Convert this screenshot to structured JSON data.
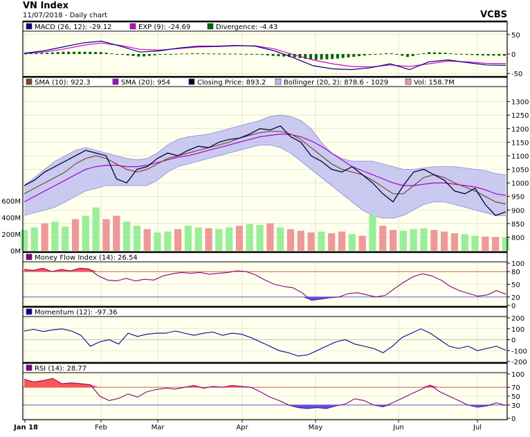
{
  "header": {
    "title": "VN Index",
    "subtitle": "11/07/2018 - Daily chart",
    "source": "VCBS"
  },
  "colors": {
    "panel_bg": "#ffffee",
    "legend_bg": "#ffffff",
    "macd": "#000080",
    "exp": "#cc00cc",
    "divergence": "#006600",
    "sma10": "#7a4a2a",
    "sma20": "#aa00cc",
    "close": "#000033",
    "bollinger_fill": "#b8b8f0",
    "bollinger_line": "#8888dd",
    "vol_up": "#99ee99",
    "vol_down": "#ee9999",
    "mfi": "#800080",
    "momentum": "#000099",
    "rsi": "#800080",
    "over_fill": "#ff5555",
    "under_fill": "#5555ee"
  },
  "chart_data": [
    {
      "type": "bar",
      "panel": "macd",
      "legend": [
        {
          "label": "MACD (26, 12): -29.12",
          "color": "#000080"
        },
        {
          "label": "EXP (9): -24.69",
          "color": "#cc00cc"
        },
        {
          "label": "Divergence: -4.43",
          "color": "#006600"
        }
      ],
      "ylim": [
        -55,
        55
      ],
      "yticks": [
        "50",
        "0",
        "-50"
      ],
      "series": [
        {
          "name": "MACD",
          "values": [
            2,
            8,
            18,
            28,
            33,
            20,
            5,
            8,
            15,
            20,
            20,
            22,
            20,
            8,
            -10,
            -30,
            -38,
            -40,
            -35,
            -25,
            -40,
            -20,
            -15,
            -22,
            -28,
            -29.12
          ]
        },
        {
          "name": "EXP",
          "values": [
            1,
            5,
            12,
            22,
            28,
            22,
            12,
            10,
            14,
            18,
            19,
            21,
            21,
            13,
            -2,
            -15,
            -25,
            -32,
            -33,
            -28,
            -32,
            -25,
            -18,
            -20,
            -24,
            -24.69
          ]
        },
        {
          "name": "Divergence",
          "values": [
            1,
            3,
            6,
            6,
            5,
            -2,
            -7,
            -2,
            1,
            2,
            1,
            1,
            -1,
            -5,
            -8,
            -15,
            -13,
            -8,
            -2,
            3,
            -8,
            5,
            3,
            -2,
            -4,
            -4.43
          ]
        }
      ]
    },
    {
      "type": "line",
      "panel": "price",
      "legend": [
        {
          "label": "SMA (10): 922.3",
          "color": "#7a4a2a"
        },
        {
          "label": "SMA (20): 954",
          "color": "#aa00cc"
        },
        {
          "label": "Closing Price: 893.2",
          "color": "#000033"
        },
        {
          "label": "Bollinger (20, 2): 878.6 - 1029",
          "color": "#b8b8f0"
        },
        {
          "label": "Vol: 158.7M",
          "color": "#ee9999"
        }
      ],
      "ylim": [
        750,
        1350
      ],
      "yticks": [
        "1300",
        "1250",
        "1200",
        "1150",
        "1100",
        "1050",
        "1000",
        "950",
        "900",
        "850",
        "800"
      ],
      "vol_ticks": [
        "600M",
        "400M",
        "200M",
        "0M"
      ],
      "close": [
        990,
        1010,
        1040,
        1060,
        1080,
        1100,
        1120,
        1110,
        1100,
        1015,
        1000,
        1050,
        1060,
        1090,
        1110,
        1100,
        1120,
        1135,
        1130,
        1150,
        1160,
        1165,
        1180,
        1200,
        1195,
        1210,
        1170,
        1150,
        1100,
        1080,
        1050,
        1040,
        1060,
        1030,
        1000,
        960,
        930,
        990,
        1040,
        1050,
        1030,
        1010,
        970,
        960,
        980,
        920,
        880,
        893.2
      ],
      "sma10": [
        960,
        980,
        1000,
        1020,
        1040,
        1070,
        1090,
        1100,
        1090,
        1070,
        1050,
        1040,
        1050,
        1070,
        1090,
        1100,
        1110,
        1120,
        1130,
        1140,
        1150,
        1165,
        1175,
        1185,
        1190,
        1190,
        1180,
        1160,
        1130,
        1100,
        1070,
        1050,
        1040,
        1030,
        1010,
        985,
        960,
        960,
        990,
        1020,
        1030,
        1020,
        1000,
        985,
        970,
        950,
        930,
        922.3
      ],
      "sma20": [
        930,
        950,
        970,
        990,
        1010,
        1030,
        1050,
        1060,
        1065,
        1065,
        1060,
        1060,
        1065,
        1075,
        1085,
        1095,
        1100,
        1110,
        1120,
        1130,
        1140,
        1150,
        1160,
        1170,
        1175,
        1180,
        1178,
        1170,
        1155,
        1135,
        1110,
        1085,
        1060,
        1045,
        1030,
        1015,
        1000,
        990,
        990,
        995,
        1000,
        1000,
        995,
        990,
        985,
        975,
        960,
        954
      ],
      "boll_upper": [
        990,
        1020,
        1050,
        1080,
        1100,
        1120,
        1130,
        1120,
        1110,
        1100,
        1090,
        1085,
        1090,
        1110,
        1140,
        1160,
        1170,
        1175,
        1180,
        1190,
        1200,
        1210,
        1220,
        1230,
        1245,
        1250,
        1245,
        1230,
        1200,
        1150,
        1110,
        1090,
        1080,
        1080,
        1080,
        1070,
        1060,
        1050,
        1050,
        1055,
        1060,
        1060,
        1060,
        1055,
        1050,
        1045,
        1035,
        1029
      ],
      "boll_lower": [
        880,
        890,
        900,
        910,
        930,
        950,
        970,
        980,
        990,
        990,
        990,
        990,
        990,
        1010,
        1040,
        1060,
        1070,
        1080,
        1090,
        1100,
        1110,
        1120,
        1130,
        1140,
        1140,
        1130,
        1110,
        1080,
        1050,
        1020,
        990,
        960,
        930,
        900,
        880,
        870,
        870,
        880,
        900,
        920,
        930,
        930,
        920,
        910,
        900,
        890,
        880,
        878.6
      ],
      "volume": [
        250,
        280,
        330,
        350,
        290,
        380,
        420,
        520,
        380,
        420,
        350,
        300,
        260,
        220,
        230,
        260,
        300,
        280,
        270,
        260,
        280,
        300,
        320,
        310,
        330,
        280,
        260,
        240,
        220,
        230,
        210,
        230,
        200,
        180,
        430,
        300,
        250,
        240,
        260,
        270,
        250,
        230,
        210,
        200,
        180,
        170,
        165,
        158.7
      ],
      "volume_up": [
        true,
        true,
        false,
        true,
        true,
        false,
        true,
        true,
        false,
        false,
        true,
        true,
        false,
        true,
        true,
        false,
        true,
        true,
        false,
        true,
        true,
        false,
        true,
        true,
        false,
        true,
        false,
        false,
        false,
        true,
        false,
        false,
        true,
        false,
        true,
        false,
        false,
        true,
        true,
        true,
        false,
        false,
        false,
        true,
        true,
        false,
        false,
        true
      ]
    },
    {
      "type": "line",
      "panel": "mfi",
      "legend": [
        {
          "label": "Money Flow Index (14): 26.54",
          "color": "#800080"
        }
      ],
      "ylim": [
        0,
        100
      ],
      "yticks": [
        "100",
        "80",
        "50",
        "20",
        "0"
      ],
      "bands": [
        80,
        20
      ],
      "values": [
        85,
        83,
        88,
        80,
        85,
        82,
        88,
        86,
        70,
        60,
        58,
        64,
        58,
        62,
        60,
        70,
        75,
        78,
        76,
        78,
        74,
        76,
        78,
        82,
        80,
        72,
        60,
        50,
        45,
        42,
        30,
        12,
        15,
        18,
        20,
        28,
        30,
        25,
        20,
        24,
        40,
        55,
        68,
        75,
        70,
        60,
        45,
        35,
        28,
        22,
        25,
        35,
        26.54
      ]
    },
    {
      "type": "line",
      "panel": "momentum",
      "legend": [
        {
          "label": "Momentum (12): -97.36",
          "color": "#000099"
        }
      ],
      "ylim": [
        -200,
        200
      ],
      "yticks": [
        "200",
        "100",
        "0",
        "-100",
        "-200"
      ],
      "values": [
        80,
        95,
        75,
        90,
        100,
        80,
        40,
        -60,
        -20,
        0,
        -40,
        60,
        30,
        50,
        60,
        60,
        80,
        60,
        40,
        60,
        70,
        40,
        60,
        50,
        20,
        -20,
        -60,
        -100,
        -120,
        -150,
        -140,
        -100,
        -60,
        -20,
        0,
        -40,
        -60,
        -80,
        -120,
        -60,
        20,
        60,
        100,
        60,
        0,
        -60,
        -80,
        -60,
        -100,
        -80,
        -60,
        -97.36
      ]
    },
    {
      "type": "line",
      "panel": "rsi",
      "legend": [
        {
          "label": "RSI (14): 28.77",
          "color": "#800080"
        }
      ],
      "ylim": [
        0,
        100
      ],
      "yticks": [
        "100",
        "70",
        "50",
        "30",
        "0"
      ],
      "bands": [
        70,
        30
      ],
      "xticks": [
        "Jan 18",
        "Feb",
        "Mar",
        "Apr",
        "May",
        "Jun",
        "Jul"
      ],
      "values": [
        88,
        82,
        85,
        90,
        78,
        80,
        78,
        76,
        50,
        40,
        45,
        55,
        48,
        60,
        65,
        68,
        66,
        70,
        74,
        68,
        72,
        70,
        74,
        72,
        70,
        60,
        48,
        40,
        30,
        24,
        22,
        24,
        22,
        28,
        32,
        44,
        40,
        30,
        26,
        35,
        45,
        55,
        65,
        75,
        60,
        50,
        40,
        30,
        25,
        28,
        35,
        28.77
      ]
    }
  ]
}
